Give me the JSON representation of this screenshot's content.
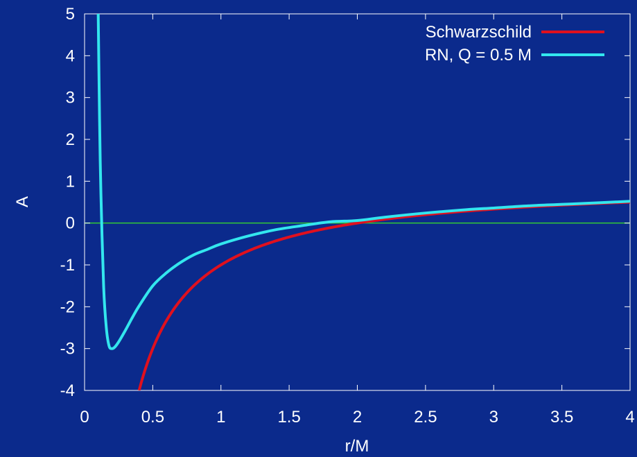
{
  "chart_data": {
    "type": "line",
    "title": "",
    "xlabel": "r/M",
    "ylabel": "A",
    "xlim": [
      0,
      4
    ],
    "ylim": [
      -4,
      5
    ],
    "x_ticks": [
      0,
      0.5,
      1,
      1.5,
      2,
      2.5,
      3,
      3.5,
      4
    ],
    "x_tick_labels": [
      "0",
      "0.5",
      "1",
      "1.5",
      "2",
      "2.5",
      "3",
      "3.5",
      "4"
    ],
    "y_ticks": [
      -4,
      -3,
      -2,
      -1,
      0,
      1,
      2,
      3,
      4,
      5
    ],
    "y_tick_labels": [
      "-4",
      "-3",
      "-2",
      "-1",
      "0",
      "1",
      "2",
      "3",
      "4",
      "5"
    ],
    "grid": false,
    "legend_position": "top-right",
    "zero_line": {
      "y": 0,
      "color": "#33cc33"
    },
    "series": [
      {
        "name": "Schwarzschild",
        "color": "#e0101e",
        "x": [
          0.4,
          0.5,
          0.6,
          0.7,
          0.8,
          0.9,
          1.0,
          1.2,
          1.4,
          1.6,
          1.8,
          2.0,
          2.2,
          2.5,
          2.8,
          3.0,
          3.3,
          3.6,
          4.0
        ],
        "y": [
          -4.0,
          -3.0,
          -2.33,
          -1.86,
          -1.5,
          -1.22,
          -1.0,
          -0.67,
          -0.43,
          -0.25,
          -0.11,
          0.0,
          0.09,
          0.2,
          0.29,
          0.33,
          0.39,
          0.44,
          0.5
        ]
      },
      {
        "name": "RN, Q = 0.5 M",
        "color": "#33e6ee",
        "x": [
          0.1,
          0.11,
          0.12,
          0.14,
          0.16,
          0.18,
          0.2,
          0.22,
          0.25,
          0.3,
          0.35,
          0.4,
          0.5,
          0.6,
          0.7,
          0.8,
          0.9,
          1.0,
          1.2,
          1.4,
          1.6,
          1.8,
          2.0,
          2.2,
          2.5,
          2.8,
          3.0,
          3.3,
          3.6,
          4.0
        ],
        "y": [
          5.0,
          2.48,
          0.69,
          -1.53,
          -2.52,
          -2.94,
          -3.0,
          -2.97,
          -2.84,
          -2.56,
          -2.26,
          -1.98,
          -1.5,
          -1.19,
          -0.95,
          -0.76,
          -0.63,
          -0.5,
          -0.31,
          -0.16,
          -0.06,
          0.03,
          0.06,
          0.14,
          0.24,
          0.32,
          0.36,
          0.42,
          0.46,
          0.52
        ]
      }
    ]
  }
}
